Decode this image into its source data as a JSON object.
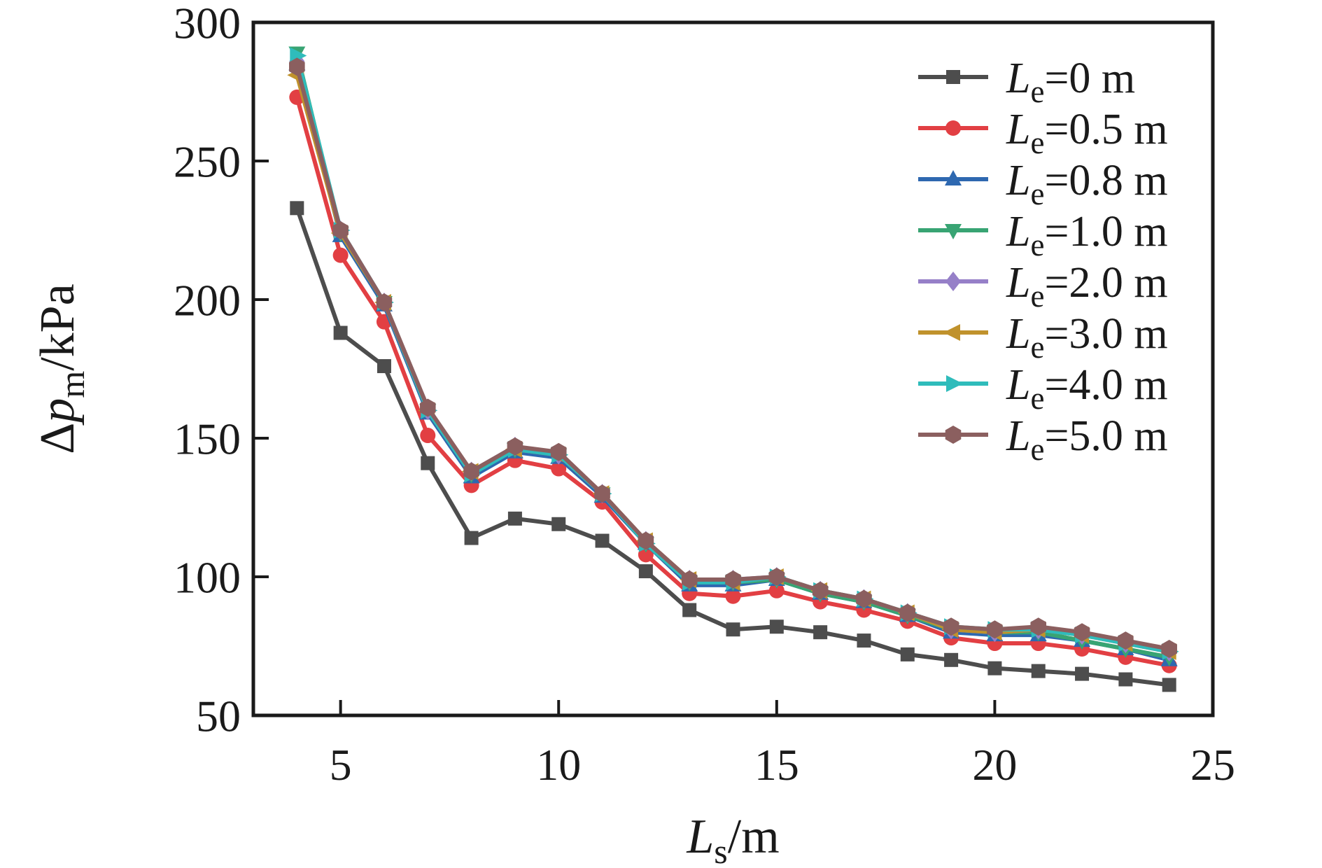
{
  "figure": {
    "background": "#ffffff",
    "axis_color": "#1a1a1a"
  },
  "chart_data": {
    "type": "line",
    "title": "",
    "xlabel_parts": [
      {
        "t": "L",
        "italic": true
      },
      {
        "t": "s",
        "sub": true
      },
      {
        "t": "/m"
      }
    ],
    "ylabel_parts": [
      {
        "t": "Δ"
      },
      {
        "t": "p",
        "italic": true
      },
      {
        "t": "m",
        "sub": true
      },
      {
        "t": "/kPa"
      }
    ],
    "xlim": [
      3,
      25
    ],
    "ylim": [
      50,
      300
    ],
    "xticks": [
      5,
      10,
      15,
      20,
      25
    ],
    "yticks": [
      50,
      100,
      150,
      200,
      250,
      300
    ],
    "grid": false,
    "legend_position": "top-right",
    "x": [
      4,
      5,
      6,
      7,
      8,
      9,
      10,
      11,
      12,
      13,
      14,
      15,
      16,
      17,
      18,
      19,
      20,
      21,
      22,
      23,
      24
    ],
    "series": [
      {
        "name": "Le=0 m",
        "label_parts": [
          {
            "t": "L",
            "italic": true
          },
          {
            "t": "e",
            "sub": true
          },
          {
            "t": "=0 m"
          }
        ],
        "color": "#4d4d4d",
        "marker": "square",
        "values": [
          233,
          188,
          176,
          141,
          114,
          121,
          119,
          113,
          102,
          88,
          81,
          82,
          80,
          77,
          72,
          70,
          67,
          66,
          65,
          63,
          61
        ]
      },
      {
        "name": "Le=0.5 m",
        "label_parts": [
          {
            "t": "L",
            "italic": true
          },
          {
            "t": "e",
            "sub": true
          },
          {
            "t": "=0.5 m"
          }
        ],
        "color": "#e23f43",
        "marker": "circle",
        "values": [
          273,
          216,
          192,
          151,
          133,
          142,
          139,
          127,
          108,
          94,
          93,
          95,
          91,
          88,
          84,
          78,
          76,
          76,
          74,
          71,
          68
        ]
      },
      {
        "name": "Le=0.8 m",
        "label_parts": [
          {
            "t": "L",
            "italic": true
          },
          {
            "t": "e",
            "sub": true
          },
          {
            "t": "=0.8 m"
          }
        ],
        "color": "#2e68b0",
        "marker": "triangle-up",
        "values": [
          285,
          223,
          198,
          159,
          136,
          145,
          143,
          129,
          112,
          97,
          97,
          99,
          94,
          91,
          86,
          80,
          79,
          79,
          77,
          74,
          70
        ]
      },
      {
        "name": "Le=1.0 m",
        "label_parts": [
          {
            "t": "L",
            "italic": true
          },
          {
            "t": "e",
            "sub": true
          },
          {
            "t": "=1.0 m"
          }
        ],
        "color": "#38a473",
        "marker": "triangle-down",
        "values": [
          289,
          224,
          199,
          160,
          137,
          146,
          144,
          130,
          112,
          98,
          98,
          99,
          94,
          91,
          86,
          81,
          80,
          80,
          77,
          74,
          71
        ]
      },
      {
        "name": "Le=2.0 m",
        "label_parts": [
          {
            "t": "L",
            "italic": true
          },
          {
            "t": "e",
            "sub": true
          },
          {
            "t": "=2.0 m"
          }
        ],
        "color": "#9680c8",
        "marker": "diamond",
        "values": [
          286,
          225,
          199,
          160,
          138,
          147,
          144,
          130,
          113,
          99,
          99,
          100,
          95,
          92,
          87,
          81,
          80,
          81,
          79,
          76,
          73
        ]
      },
      {
        "name": "Le=3.0 m",
        "label_parts": [
          {
            "t": "L",
            "italic": true
          },
          {
            "t": "e",
            "sub": true
          },
          {
            "t": "=3.0 m"
          }
        ],
        "color": "#c0922c",
        "marker": "triangle-left",
        "values": [
          281,
          224,
          199,
          160,
          138,
          146,
          144,
          130,
          113,
          99,
          98,
          100,
          95,
          92,
          87,
          81,
          80,
          81,
          79,
          76,
          73
        ]
      },
      {
        "name": "Le=4.0 m",
        "label_parts": [
          {
            "t": "L",
            "italic": true
          },
          {
            "t": "e",
            "sub": true
          },
          {
            "t": "=4.0 m"
          }
        ],
        "color": "#2fbcbb",
        "marker": "triangle-right",
        "values": [
          288,
          225,
          199,
          160,
          137,
          146,
          144,
          130,
          112,
          98,
          98,
          100,
          95,
          92,
          87,
          82,
          81,
          81,
          79,
          76,
          73
        ]
      },
      {
        "name": "Le=5.0 m",
        "label_parts": [
          {
            "t": "L",
            "italic": true
          },
          {
            "t": "e",
            "sub": true
          },
          {
            "t": "=5.0 m"
          }
        ],
        "color": "#8b5f5f",
        "marker": "hexagon",
        "values": [
          284,
          225,
          199,
          161,
          138,
          147,
          145,
          130,
          113,
          99,
          99,
          100,
          95,
          92,
          87,
          82,
          81,
          82,
          80,
          77,
          74
        ]
      }
    ]
  }
}
